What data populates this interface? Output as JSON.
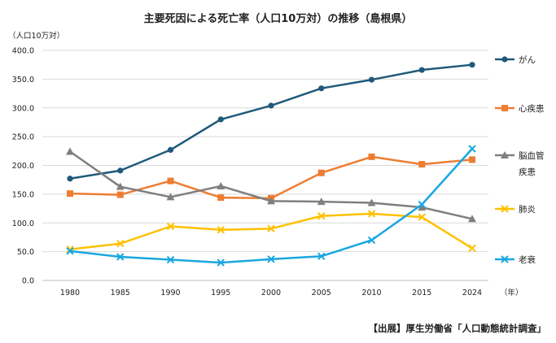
{
  "chart_data": {
    "type": "line",
    "title": "主要死因による死亡率（人口10万対）の推移（島根県）",
    "ylabel": "（人口10万対）",
    "xunit": "（年）",
    "categories": [
      "1980",
      "1985",
      "1990",
      "1995",
      "2000",
      "2005",
      "2010",
      "2015",
      "2024"
    ],
    "ylim": [
      0,
      400
    ],
    "yticks": [
      "400.0",
      "350.0",
      "300.0",
      "250.0",
      "200.0",
      "150.0",
      "100.0",
      "50.0",
      "0.0"
    ],
    "grid": true,
    "legend_position": "right",
    "series": [
      {
        "name": "がん",
        "color": "#1f5a7a",
        "marker": "circle",
        "values": [
          177,
          191,
          227,
          280,
          304,
          334,
          349,
          366,
          375
        ]
      },
      {
        "name": "心疾患",
        "color": "#ed7d31",
        "marker": "square",
        "values": [
          151,
          149,
          173,
          144,
          143,
          187,
          215,
          202,
          210
        ]
      },
      {
        "name": "脳血管疾患",
        "color": "#7f7f7f",
        "marker": "triangle",
        "values": [
          224,
          163,
          145,
          164,
          138,
          137,
          135,
          127,
          107
        ]
      },
      {
        "name": "肺炎",
        "color": "#ffc000",
        "marker": "x",
        "values": [
          54,
          64,
          94,
          88,
          90,
          112,
          116,
          110,
          56
        ]
      },
      {
        "name": "老衰",
        "color": "#1aa7e0",
        "marker": "x",
        "values": [
          51,
          41,
          36,
          31,
          37,
          42,
          70,
          132,
          229
        ]
      }
    ]
  },
  "source": "【出展】厚生労働省「人口動態統計調査」"
}
